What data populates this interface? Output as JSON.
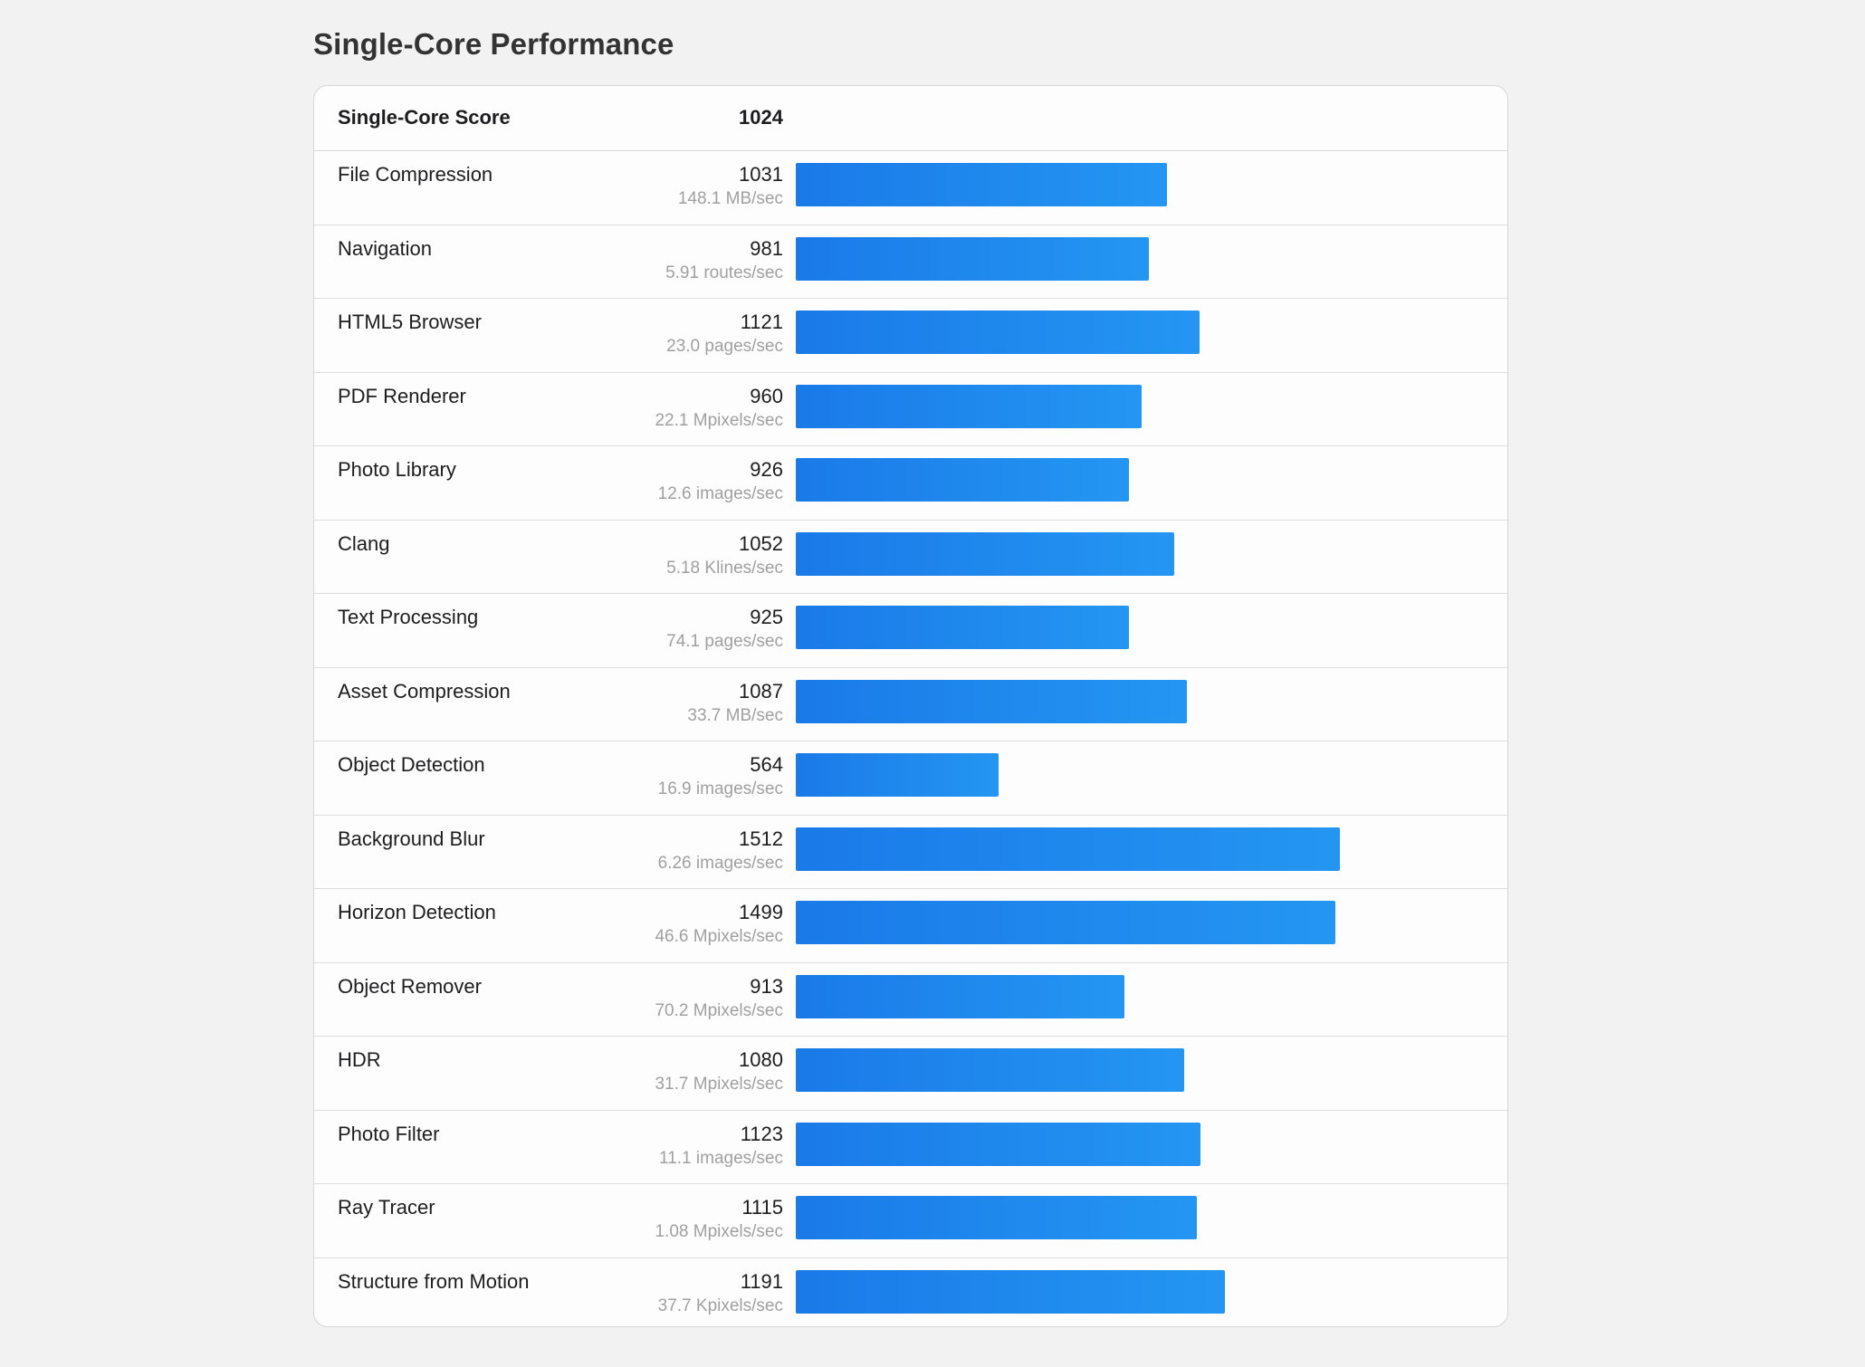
{
  "title": "Single-Core Performance",
  "summary": {
    "label": "Single-Core Score",
    "value": "1024"
  },
  "bar_color": "#1e88ec",
  "chart_data": {
    "type": "bar",
    "orientation": "horizontal",
    "scale_max": 2012,
    "categories": [
      "File Compression",
      "Navigation",
      "HTML5 Browser",
      "PDF Renderer",
      "Photo Library",
      "Clang",
      "Text Processing",
      "Asset Compression",
      "Object Detection",
      "Background Blur",
      "Horizon Detection",
      "Object Remover",
      "HDR",
      "Photo Filter",
      "Ray Tracer",
      "Structure from Motion"
    ],
    "values": [
      1031,
      981,
      1121,
      960,
      926,
      1052,
      925,
      1087,
      564,
      1512,
      1499,
      913,
      1080,
      1123,
      1115,
      1191
    ]
  },
  "benchmarks": [
    {
      "name": "File Compression",
      "score": "1031",
      "rate": "148.1 MB/sec"
    },
    {
      "name": "Navigation",
      "score": "981",
      "rate": "5.91 routes/sec"
    },
    {
      "name": "HTML5 Browser",
      "score": "1121",
      "rate": "23.0 pages/sec"
    },
    {
      "name": "PDF Renderer",
      "score": "960",
      "rate": "22.1 Mpixels/sec"
    },
    {
      "name": "Photo Library",
      "score": "926",
      "rate": "12.6 images/sec"
    },
    {
      "name": "Clang",
      "score": "1052",
      "rate": "5.18 Klines/sec"
    },
    {
      "name": "Text Processing",
      "score": "925",
      "rate": "74.1 pages/sec"
    },
    {
      "name": "Asset Compression",
      "score": "1087",
      "rate": "33.7 MB/sec"
    },
    {
      "name": "Object Detection",
      "score": "564",
      "rate": "16.9 images/sec"
    },
    {
      "name": "Background Blur",
      "score": "1512",
      "rate": "6.26 images/sec"
    },
    {
      "name": "Horizon Detection",
      "score": "1499",
      "rate": "46.6 Mpixels/sec"
    },
    {
      "name": "Object Remover",
      "score": "913",
      "rate": "70.2 Mpixels/sec"
    },
    {
      "name": "HDR",
      "score": "1080",
      "rate": "31.7 Mpixels/sec"
    },
    {
      "name": "Photo Filter",
      "score": "1123",
      "rate": "11.1 images/sec"
    },
    {
      "name": "Ray Tracer",
      "score": "1115",
      "rate": "1.08 Mpixels/sec"
    },
    {
      "name": "Structure from Motion",
      "score": "1191",
      "rate": "37.7 Kpixels/sec"
    }
  ]
}
